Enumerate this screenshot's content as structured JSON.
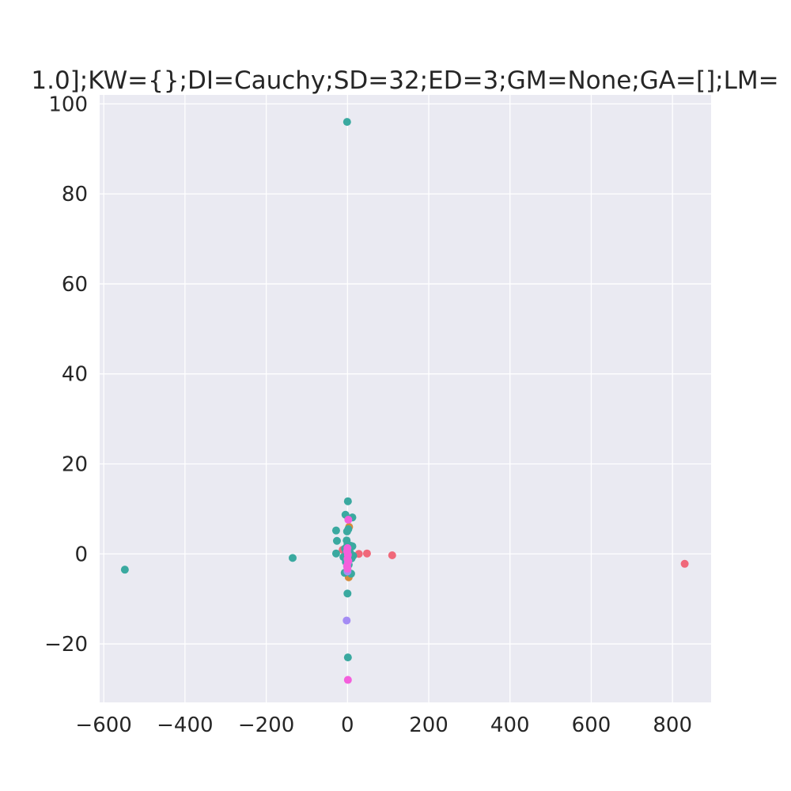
{
  "chart_data": {
    "type": "scatter",
    "title": "1.0];KW={};DI=Cauchy;SD=32;ED=3;GM=None;GA=[];LM=",
    "xlabel": "",
    "ylabel": "",
    "xlim": [
      -610,
      895
    ],
    "ylim": [
      -33,
      102
    ],
    "x_ticks": [
      -600,
      -400,
      -200,
      0,
      200,
      400,
      600,
      800
    ],
    "y_ticks": [
      -20,
      0,
      20,
      40,
      60,
      80,
      100
    ],
    "x_tick_labels": [
      "−600",
      "−400",
      "−200",
      "0",
      "200",
      "400",
      "600",
      "800"
    ],
    "y_tick_labels": [
      "−20",
      "0",
      "20",
      "40",
      "60",
      "80",
      "100"
    ],
    "grid": true,
    "background": "#eaeaf2",
    "series": [
      {
        "color": "#f0687a",
        "points": [
          [
            830,
            -2.2
          ],
          [
            110,
            -0.3
          ],
          [
            48,
            0.1
          ],
          [
            28,
            0.0
          ],
          [
            -12,
            0.9
          ],
          [
            -8,
            -0.5
          ],
          [
            2,
            0.3
          ]
        ]
      },
      {
        "color": "#d38b3c",
        "points": [
          [
            3,
            -5.2
          ],
          [
            2,
            0.8
          ],
          [
            -2,
            1.5
          ],
          [
            0,
            -1.0
          ],
          [
            4,
            6.0
          ]
        ]
      },
      {
        "color": "#3aa9a0",
        "points": [
          [
            -1,
            96.0
          ],
          [
            -548,
            -3.5
          ],
          [
            -135,
            -0.9
          ],
          [
            1,
            11.7
          ],
          [
            -5,
            8.7
          ],
          [
            12,
            8.1
          ],
          [
            -28,
            5.2
          ],
          [
            -26,
            2.9
          ],
          [
            -28,
            0.1
          ],
          [
            -1,
            5.0
          ],
          [
            2,
            5.5
          ],
          [
            -2,
            3.0
          ],
          [
            8,
            1.8
          ],
          [
            12,
            1.7
          ],
          [
            -6,
            1.2
          ],
          [
            6,
            0.4
          ],
          [
            14,
            -0.4
          ],
          [
            -10,
            -0.7
          ],
          [
            10,
            -1.0
          ],
          [
            -4,
            -1.8
          ],
          [
            3,
            -2.4
          ],
          [
            -7,
            -4.2
          ],
          [
            9,
            -4.4
          ],
          [
            0,
            -8.8
          ],
          [
            1,
            -23.0
          ],
          [
            -3,
            0.6
          ],
          [
            4,
            -0.6
          ],
          [
            0,
            2.2
          ]
        ]
      },
      {
        "color": "#a48cf4",
        "points": [
          [
            -2,
            -14.8
          ],
          [
            0,
            -3.9
          ],
          [
            -1,
            -2.8
          ],
          [
            1,
            -1.9
          ]
        ]
      },
      {
        "color": "#f45fdc",
        "points": [
          [
            1,
            -28.0
          ],
          [
            2,
            7.6
          ],
          [
            0,
            1.3
          ],
          [
            -1,
            0.6
          ],
          [
            1,
            -0.2
          ],
          [
            0,
            -1.1
          ],
          [
            2,
            -1.6
          ],
          [
            -1,
            -2.6
          ],
          [
            0,
            -3.3
          ]
        ]
      }
    ]
  }
}
